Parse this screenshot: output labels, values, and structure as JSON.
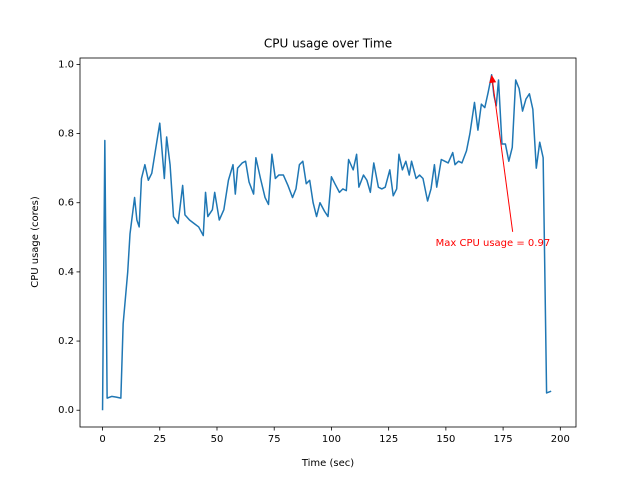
{
  "chart_data": {
    "type": "line",
    "title": "CPU usage over Time",
    "xlabel": "Time (sec)",
    "ylabel": "CPU usage (cores)",
    "x": [
      0,
      1,
      2,
      4,
      6,
      8,
      9,
      11,
      12,
      14,
      15,
      16,
      17,
      18.5,
      20,
      21.5,
      25,
      27,
      28,
      29.5,
      31,
      33,
      35,
      36,
      38,
      40,
      42,
      44,
      45,
      46,
      48,
      49,
      51,
      53,
      55,
      57,
      58,
      59,
      61,
      62.5,
      64,
      66,
      67,
      69,
      71,
      72.5,
      74,
      75.5,
      77,
      79,
      81,
      83,
      84.5,
      86,
      87.5,
      89,
      90.5,
      92,
      93.5,
      95,
      97,
      98.5,
      100,
      101.5,
      103.5,
      105,
      106.5,
      107.5,
      109.5,
      111,
      112,
      114,
      115.5,
      117,
      118.5,
      120.5,
      122,
      123.5,
      125.5,
      127,
      128.5,
      129.5,
      131,
      132.5,
      134,
      135,
      137,
      138.5,
      140,
      142,
      143.5,
      145,
      146,
      148,
      149.5,
      151,
      153,
      154,
      155.5,
      157,
      159,
      160.5,
      162.5,
      164,
      165.5,
      167,
      168.5,
      170,
      171,
      172,
      173,
      174.5,
      176,
      177.5,
      179,
      180.5,
      182,
      183.5,
      185,
      186.5,
      188,
      189.5,
      191,
      192.5,
      194,
      196
    ],
    "series": [
      {
        "name": "CPU usage",
        "color": "#1f77b4",
        "values": [
          0.0,
          0.78,
          0.035,
          0.04,
          0.038,
          0.035,
          0.25,
          0.4,
          0.51,
          0.615,
          0.55,
          0.53,
          0.67,
          0.71,
          0.665,
          0.685,
          0.83,
          0.67,
          0.79,
          0.71,
          0.56,
          0.54,
          0.65,
          0.565,
          0.55,
          0.54,
          0.53,
          0.505,
          0.63,
          0.56,
          0.58,
          0.63,
          0.55,
          0.58,
          0.665,
          0.71,
          0.625,
          0.7,
          0.715,
          0.72,
          0.66,
          0.625,
          0.73,
          0.67,
          0.615,
          0.595,
          0.74,
          0.67,
          0.68,
          0.68,
          0.65,
          0.615,
          0.64,
          0.71,
          0.72,
          0.655,
          0.665,
          0.6,
          0.56,
          0.6,
          0.575,
          0.56,
          0.675,
          0.655,
          0.63,
          0.64,
          0.635,
          0.725,
          0.695,
          0.74,
          0.645,
          0.68,
          0.665,
          0.63,
          0.715,
          0.645,
          0.64,
          0.645,
          0.695,
          0.62,
          0.64,
          0.74,
          0.695,
          0.72,
          0.68,
          0.72,
          0.67,
          0.68,
          0.67,
          0.605,
          0.64,
          0.71,
          0.645,
          0.725,
          0.72,
          0.715,
          0.745,
          0.71,
          0.72,
          0.715,
          0.75,
          0.8,
          0.89,
          0.81,
          0.885,
          0.875,
          0.92,
          0.97,
          0.91,
          0.88,
          0.955,
          0.77,
          0.77,
          0.72,
          0.76,
          0.955,
          0.93,
          0.865,
          0.9,
          0.915,
          0.87,
          0.7,
          0.775,
          0.73,
          0.05,
          0.055
        ]
      }
    ],
    "xlim": [
      -9.85,
      206.85
    ],
    "ylim": [
      -0.0485,
      1.0185
    ],
    "xticks": [
      0,
      25,
      50,
      75,
      100,
      125,
      150,
      175,
      200
    ],
    "yticks": [
      {
        "value": 0,
        "label": "0.0"
      },
      0.2,
      0.4,
      0.6,
      0.8,
      {
        "value": 1,
        "label": "1.0"
      }
    ],
    "grid": false,
    "annotation": {
      "text": "Max CPU usage = 0.97",
      "x": 170,
      "y": 0.97,
      "color": "red"
    }
  }
}
